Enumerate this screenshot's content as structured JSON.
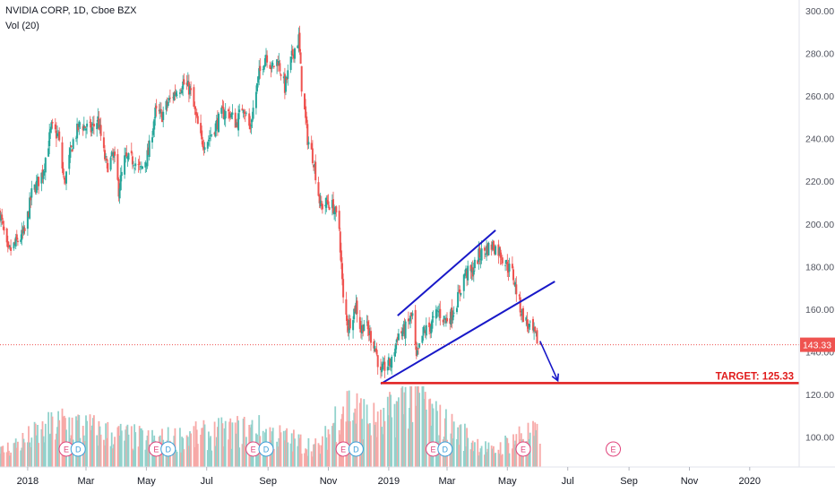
{
  "header": {
    "symbol_line": "NVIDIA CORP, 1D, Cboe BZX",
    "volume_line": "Vol (20)"
  },
  "colors": {
    "up": "#26a69a",
    "down": "#ef5350",
    "up_volume": "#92d2cc",
    "down_volume": "#f7a9a7",
    "trendline": "#1818c8",
    "target_line": "#e01c1c",
    "price_label_bg": "#ef5350",
    "earnings_marker": "#e0427a",
    "dividend_marker": "#3a9dd8"
  },
  "chart_data": {
    "type": "candlestick",
    "title": "NVIDIA CORP, 1D, Cboe BZX",
    "ylim": [
      86,
      305
    ],
    "y_ticks": [
      100,
      120,
      140,
      160,
      180,
      200,
      220,
      240,
      260,
      280,
      300
    ],
    "y_tick_labels": [
      "100.00",
      "120.00",
      "140.00",
      "160.00",
      "180.00",
      "200.00",
      "220.00",
      "240.00",
      "260.00",
      "280.00",
      "300.00"
    ],
    "x_range": [
      "2017-12-04",
      "2020-02-20"
    ],
    "x_ticks": [
      {
        "date": "2018-01-01",
        "label": "2018"
      },
      {
        "date": "2018-03-01",
        "label": "Mar"
      },
      {
        "date": "2018-05-01",
        "label": "May"
      },
      {
        "date": "2018-07-01",
        "label": "Jul"
      },
      {
        "date": "2018-09-01",
        "label": "Sep"
      },
      {
        "date": "2018-11-01",
        "label": "Nov"
      },
      {
        "date": "2019-01-01",
        "label": "2019"
      },
      {
        "date": "2019-03-01",
        "label": "Mar"
      },
      {
        "date": "2019-05-01",
        "label": "May"
      },
      {
        "date": "2019-07-01",
        "label": "Jul"
      },
      {
        "date": "2019-09-01",
        "label": "Sep"
      },
      {
        "date": "2019-11-01",
        "label": "Nov"
      },
      {
        "date": "2020-01-01",
        "label": "2020"
      }
    ],
    "price_path": [
      [
        "2017-12-04",
        205
      ],
      [
        "2017-12-12",
        186
      ],
      [
        "2017-12-20",
        191
      ],
      [
        "2017-12-29",
        196
      ],
      [
        "2018-01-05",
        214
      ],
      [
        "2018-01-16",
        224
      ],
      [
        "2018-01-25",
        245
      ],
      [
        "2018-02-01",
        241
      ],
      [
        "2018-02-07",
        219
      ],
      [
        "2018-02-16",
        239
      ],
      [
        "2018-02-23",
        247
      ],
      [
        "2018-03-06",
        244
      ],
      [
        "2018-03-13",
        249
      ],
      [
        "2018-03-19",
        233
      ],
      [
        "2018-03-22",
        227
      ],
      [
        "2018-03-29",
        232
      ],
      [
        "2018-04-03",
        216
      ],
      [
        "2018-04-09",
        230
      ],
      [
        "2018-04-18",
        230
      ],
      [
        "2018-04-25",
        225
      ],
      [
        "2018-05-03",
        233
      ],
      [
        "2018-05-10",
        252
      ],
      [
        "2018-05-17",
        251
      ],
      [
        "2018-05-23",
        257
      ],
      [
        "2018-06-01",
        263
      ],
      [
        "2018-06-07",
        266
      ],
      [
        "2018-06-14",
        263
      ],
      [
        "2018-06-20",
        250
      ],
      [
        "2018-06-26",
        238
      ],
      [
        "2018-07-03",
        240
      ],
      [
        "2018-07-10",
        246
      ],
      [
        "2018-07-17",
        252
      ],
      [
        "2018-07-24",
        252
      ],
      [
        "2018-07-31",
        247
      ],
      [
        "2018-08-07",
        256
      ],
      [
        "2018-08-14",
        244
      ],
      [
        "2018-08-17",
        254
      ],
      [
        "2018-08-23",
        270
      ],
      [
        "2018-08-30",
        280
      ],
      [
        "2018-09-05",
        273
      ],
      [
        "2018-09-11",
        277
      ],
      [
        "2018-09-18",
        264
      ],
      [
        "2018-09-26",
        280
      ],
      [
        "2018-10-02",
        287
      ],
      [
        "2018-10-05",
        265
      ],
      [
        "2018-10-11",
        240
      ],
      [
        "2018-10-17",
        230
      ],
      [
        "2018-10-24",
        208
      ],
      [
        "2018-10-31",
        210
      ],
      [
        "2018-11-06",
        208
      ],
      [
        "2018-11-12",
        198
      ],
      [
        "2018-11-16",
        164
      ],
      [
        "2018-11-21",
        152
      ],
      [
        "2018-11-29",
        162
      ],
      [
        "2018-12-04",
        150
      ],
      [
        "2018-12-07",
        154
      ],
      [
        "2018-12-12",
        149
      ],
      [
        "2018-12-18",
        143
      ],
      [
        "2018-12-24",
        129
      ],
      [
        "2018-12-28",
        133
      ],
      [
        "2019-01-04",
        135
      ],
      [
        "2019-01-10",
        148
      ],
      [
        "2019-01-17",
        150
      ],
      [
        "2019-01-25",
        157
      ],
      [
        "2019-01-29",
        136
      ],
      [
        "2019-02-05",
        149
      ],
      [
        "2019-02-12",
        152
      ],
      [
        "2019-02-20",
        159
      ],
      [
        "2019-02-27",
        155
      ],
      [
        "2019-03-05",
        157
      ],
      [
        "2019-03-12",
        165
      ],
      [
        "2019-03-19",
        177
      ],
      [
        "2019-03-26",
        177
      ],
      [
        "2019-04-02",
        185
      ],
      [
        "2019-04-09",
        188
      ],
      [
        "2019-04-16",
        190
      ],
      [
        "2019-04-23",
        187
      ],
      [
        "2019-04-30",
        181
      ],
      [
        "2019-05-06",
        177
      ],
      [
        "2019-05-10",
        169
      ],
      [
        "2019-05-15",
        159
      ],
      [
        "2019-05-21",
        153
      ],
      [
        "2019-05-28",
        148
      ],
      [
        "2019-06-03",
        143.33
      ]
    ],
    "volume_path": [
      [
        "2017-12-04",
        4
      ],
      [
        "2018-02-07",
        12
      ],
      [
        "2018-03-19",
        9
      ],
      [
        "2018-05-10",
        7
      ],
      [
        "2018-08-17",
        10
      ],
      [
        "2018-10-24",
        5
      ],
      [
        "2018-11-16",
        17
      ],
      [
        "2018-12-24",
        11
      ],
      [
        "2019-01-29",
        22
      ],
      [
        "2019-02-15",
        13
      ],
      [
        "2019-04-16",
        4
      ],
      [
        "2019-05-17",
        9
      ],
      [
        "2019-06-03",
        8
      ]
    ],
    "volume_max": 22,
    "current_price": {
      "value": 143.33,
      "label": "143.33"
    },
    "target": {
      "value": 125.33,
      "label": "TARGET: 125.33",
      "start": "2018-12-24",
      "end": "2020-02-20"
    },
    "wedge_upper": [
      [
        "2019-01-10",
        157
      ],
      [
        "2019-04-19",
        197
      ]
    ],
    "wedge_lower": [
      [
        "2018-12-24",
        125
      ],
      [
        "2019-06-18",
        173
      ]
    ],
    "projection_arrow": [
      [
        "2019-06-03",
        145
      ],
      [
        "2019-06-21",
        126.5
      ]
    ],
    "events": [
      {
        "date": "2018-02-09",
        "type": "E"
      },
      {
        "date": "2018-02-21",
        "type": "D"
      },
      {
        "date": "2018-05-11",
        "type": "E"
      },
      {
        "date": "2018-05-23",
        "type": "D"
      },
      {
        "date": "2018-08-17",
        "type": "E"
      },
      {
        "date": "2018-08-30",
        "type": "D"
      },
      {
        "date": "2018-11-16",
        "type": "E"
      },
      {
        "date": "2018-11-29",
        "type": "D"
      },
      {
        "date": "2019-02-15",
        "type": "E"
      },
      {
        "date": "2019-02-27",
        "type": "D"
      },
      {
        "date": "2019-05-17",
        "type": "E"
      },
      {
        "date": "2019-08-16",
        "type": "E"
      }
    ]
  }
}
